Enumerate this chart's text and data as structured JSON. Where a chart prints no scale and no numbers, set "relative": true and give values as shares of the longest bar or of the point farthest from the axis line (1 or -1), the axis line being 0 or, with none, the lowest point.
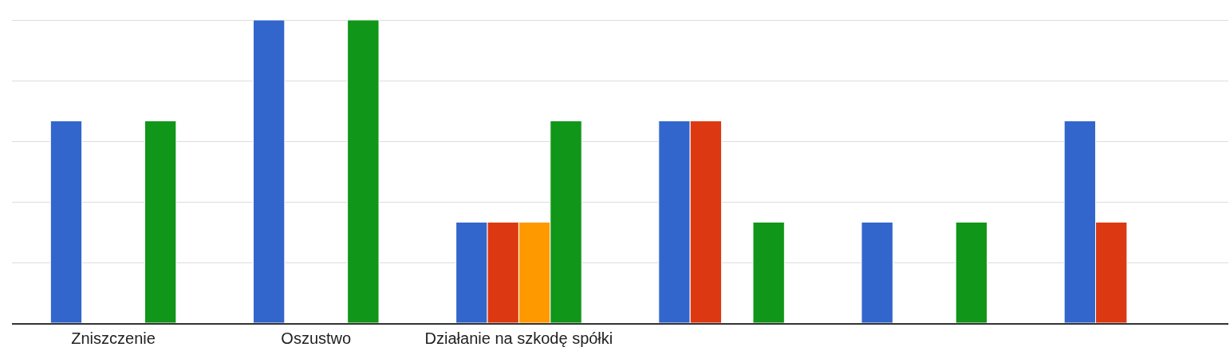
{
  "chart_data": {
    "type": "bar",
    "relative": true,
    "grid": "y",
    "legend": false,
    "categories": [
      "Zniszczenie",
      "Oszustwo",
      "Działanie na szkodę spółki",
      null,
      null,
      null
    ],
    "series": [
      {
        "color": "#3366cc",
        "values": [
          0.667,
          1,
          0.333,
          0.667,
          0.333,
          0.667
        ]
      },
      {
        "color": "#dc3912",
        "values": [
          null,
          null,
          0.333,
          0.667,
          null,
          0.333
        ]
      },
      {
        "color": "#ff9900",
        "values": [
          null,
          null,
          0.333,
          null,
          null,
          null
        ]
      },
      {
        "color": "#109618",
        "values": [
          0.667,
          1,
          0.667,
          0.333,
          0.333,
          null
        ]
      }
    ]
  }
}
